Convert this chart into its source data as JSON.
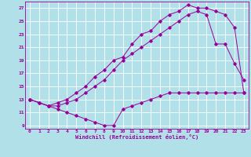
{
  "xlabel": "Windchill (Refroidissement éolien,°C)",
  "bg_color": "#b2e0e8",
  "grid_color": "#ffffff",
  "line_color": "#990099",
  "xlim": [
    -0.5,
    23.5
  ],
  "ylim": [
    8.5,
    28.0
  ],
  "xticks": [
    0,
    1,
    2,
    3,
    4,
    5,
    6,
    7,
    8,
    9,
    10,
    11,
    12,
    13,
    14,
    15,
    16,
    17,
    18,
    19,
    20,
    21,
    22,
    23
  ],
  "yticks": [
    9,
    11,
    13,
    15,
    17,
    19,
    21,
    23,
    25,
    27
  ],
  "line1_x": [
    0,
    1,
    2,
    3,
    4,
    5,
    6,
    7,
    8,
    9,
    10,
    11,
    12,
    13,
    14,
    15,
    16,
    17,
    18,
    19,
    20,
    21,
    22,
    23
  ],
  "line1_y": [
    13,
    12.5,
    12,
    11.5,
    11,
    10.5,
    10,
    9.5,
    9,
    9,
    11.5,
    12,
    12.5,
    13,
    13.5,
    14,
    14,
    14,
    14,
    14,
    14,
    14,
    14,
    14
  ],
  "line2_x": [
    0,
    1,
    2,
    3,
    4,
    5,
    6,
    7,
    8,
    9,
    10,
    11,
    12,
    13,
    14,
    15,
    16,
    17,
    18,
    19,
    20,
    21,
    22,
    23
  ],
  "line2_y": [
    13,
    12.5,
    12,
    12.5,
    13,
    14,
    15,
    16.5,
    17.5,
    19,
    19.5,
    21.5,
    23,
    23.5,
    25,
    26,
    26.5,
    27.5,
    27,
    27,
    26.5,
    26,
    24,
    14
  ],
  "line3_x": [
    0,
    2,
    3,
    4,
    5,
    6,
    7,
    8,
    9,
    10,
    11,
    12,
    13,
    14,
    15,
    16,
    17,
    18,
    19,
    20,
    21,
    22,
    23
  ],
  "line3_y": [
    13,
    12,
    12,
    12.5,
    13,
    14,
    15,
    16,
    17.5,
    19,
    20,
    21,
    22,
    23,
    24,
    25,
    26,
    26.5,
    26,
    21.5,
    21.5,
    18.5,
    16
  ]
}
